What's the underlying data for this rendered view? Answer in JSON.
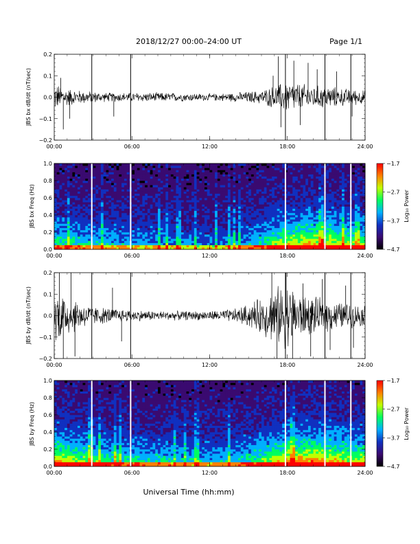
{
  "header": {
    "date_range": "2018/12/27   00:00–24:00 UT",
    "page": "Page 1/1"
  },
  "x_axis": {
    "title": "Universal Time (hh:mm)",
    "ticks": [
      "00:00",
      "06:00",
      "12:00",
      "18:00",
      "24:00"
    ]
  },
  "colors": {
    "waveform": "#000000",
    "data_gap": "#ffffff",
    "spectrogram_background": "#1a0a4a",
    "colorbar": [
      "#000000",
      "#3a0a70",
      "#1030c0",
      "#00b0ff",
      "#00ff60",
      "#c0ff00",
      "#ff8000",
      "#ff0000"
    ]
  },
  "chart_data": [
    {
      "type": "line",
      "panel": "bx_waveform",
      "ylabel": "JBS bx dB/dt (nT/sec)",
      "ylim": [
        -0.2,
        0.2
      ],
      "yticks": [
        "0.2",
        "0.1",
        "0.0",
        "−0.1",
        "−0.2"
      ],
      "xlim_hours": [
        0,
        24
      ],
      "data_gaps_hours": [
        2.9,
        5.9,
        17.85,
        20.9,
        22.9
      ],
      "envelope": {
        "hours": [
          0,
          1,
          2,
          3,
          4,
          5,
          6,
          8,
          10,
          12,
          14,
          15,
          16,
          17,
          18,
          19,
          20,
          21,
          22,
          23,
          24
        ],
        "amplitude": [
          0.06,
          0.04,
          0.03,
          0.025,
          0.02,
          0.02,
          0.02,
          0.02,
          0.018,
          0.015,
          0.02,
          0.025,
          0.03,
          0.05,
          0.07,
          0.06,
          0.05,
          0.05,
          0.04,
          0.035,
          0.03
        ]
      },
      "spikes": [
        {
          "hour": 0.5,
          "value": 0.09
        },
        {
          "hour": 0.7,
          "value": -0.15
        },
        {
          "hour": 1.2,
          "value": -0.1
        },
        {
          "hour": 4.6,
          "value": -0.09
        },
        {
          "hour": 16.9,
          "value": 0.1
        },
        {
          "hour": 17.3,
          "value": 0.19
        },
        {
          "hour": 17.5,
          "value": -0.14
        },
        {
          "hour": 18.5,
          "value": 0.17
        },
        {
          "hour": 19.0,
          "value": -0.13
        },
        {
          "hour": 19.6,
          "value": 0.16
        },
        {
          "hour": 20.3,
          "value": 0.13
        },
        {
          "hour": 21.8,
          "value": 0.12
        },
        {
          "hour": 23.0,
          "value": -0.09
        }
      ]
    },
    {
      "type": "heatmap",
      "panel": "bx_spectrogram",
      "ylabel": "JBS bx Freq (Hz)",
      "ylim": [
        0.0,
        1.0
      ],
      "yticks": [
        "1.0",
        "0.8",
        "0.6",
        "0.4",
        "0.2",
        "0.0"
      ],
      "xlim_hours": [
        0,
        24
      ],
      "colorbar": {
        "label": "Log₁₀ Power",
        "range": [
          -4.7,
          -1.7
        ],
        "ticks": [
          "−1.7",
          "−2.7",
          "−3.7",
          "−4.7"
        ]
      },
      "data_gaps_hours": [
        2.9,
        5.9,
        17.85,
        20.9,
        22.9
      ],
      "activity_hours": [
        0,
        2,
        4,
        6,
        8,
        10,
        12,
        14,
        16,
        17,
        18,
        19,
        20,
        21,
        22,
        23,
        24
      ],
      "activity_level": [
        0.55,
        0.45,
        0.4,
        0.38,
        0.35,
        0.3,
        0.28,
        0.32,
        0.5,
        0.65,
        0.75,
        0.8,
        0.8,
        0.78,
        0.72,
        0.65,
        0.6
      ]
    },
    {
      "type": "line",
      "panel": "by_waveform",
      "ylabel": "JBS by dB/dt (nT/sec)",
      "ylim": [
        -0.2,
        0.2
      ],
      "yticks": [
        "0.2",
        "0.1",
        "0.0",
        "−0.1",
        "−0.2"
      ],
      "xlim_hours": [
        0,
        24
      ],
      "data_gaps_hours": [
        2.9,
        5.9,
        17.85,
        20.9,
        22.9
      ],
      "envelope": {
        "hours": [
          0,
          0.5,
          1,
          2,
          3,
          4,
          5,
          6,
          8,
          10,
          12,
          14,
          15,
          16,
          17,
          18,
          19,
          20,
          21,
          22,
          23,
          24
        ],
        "amplitude": [
          0.1,
          0.12,
          0.09,
          0.06,
          0.04,
          0.035,
          0.03,
          0.025,
          0.02,
          0.02,
          0.02,
          0.03,
          0.05,
          0.08,
          0.12,
          0.14,
          0.1,
          0.08,
          0.07,
          0.06,
          0.05,
          0.045
        ]
      },
      "spikes": [
        {
          "hour": 0.4,
          "value": 0.2
        },
        {
          "hour": 0.7,
          "value": -0.2
        },
        {
          "hour": 1.3,
          "value": 0.2
        },
        {
          "hour": 1.6,
          "value": -0.19
        },
        {
          "hour": 4.5,
          "value": 0.13
        },
        {
          "hour": 5.2,
          "value": -0.12
        },
        {
          "hour": 16.8,
          "value": 0.2
        },
        {
          "hour": 17.2,
          "value": -0.2
        },
        {
          "hour": 17.9,
          "value": 0.2
        },
        {
          "hour": 18.4,
          "value": -0.2
        },
        {
          "hour": 19.2,
          "value": 0.15
        },
        {
          "hour": 19.8,
          "value": -0.19
        },
        {
          "hour": 20.7,
          "value": 0.17
        },
        {
          "hour": 21.3,
          "value": -0.16
        },
        {
          "hour": 22.5,
          "value": 0.14
        },
        {
          "hour": 23.1,
          "value": -0.15
        }
      ]
    },
    {
      "type": "heatmap",
      "panel": "by_spectrogram",
      "ylabel": "JBS by Freq (Hz)",
      "ylim": [
        0.0,
        1.0
      ],
      "yticks": [
        "1.0",
        "0.8",
        "0.6",
        "0.4",
        "0.2",
        "0.0"
      ],
      "xlim_hours": [
        0,
        24
      ],
      "colorbar": {
        "label": "Log₁₀ Power",
        "range": [
          -4.7,
          -1.7
        ],
        "ticks": [
          "−1.7",
          "−2.7",
          "−3.7",
          "−4.7"
        ]
      },
      "data_gaps_hours": [
        2.9,
        5.9,
        17.85,
        20.9,
        22.9
      ],
      "activity_hours": [
        0,
        1,
        2,
        4,
        6,
        8,
        10,
        12,
        14,
        16,
        17,
        18,
        19,
        20,
        21,
        22,
        23,
        24
      ],
      "activity_level": [
        0.85,
        0.75,
        0.65,
        0.55,
        0.5,
        0.45,
        0.42,
        0.4,
        0.45,
        0.6,
        0.75,
        0.85,
        0.88,
        0.9,
        0.85,
        0.8,
        0.72,
        0.7
      ]
    }
  ]
}
